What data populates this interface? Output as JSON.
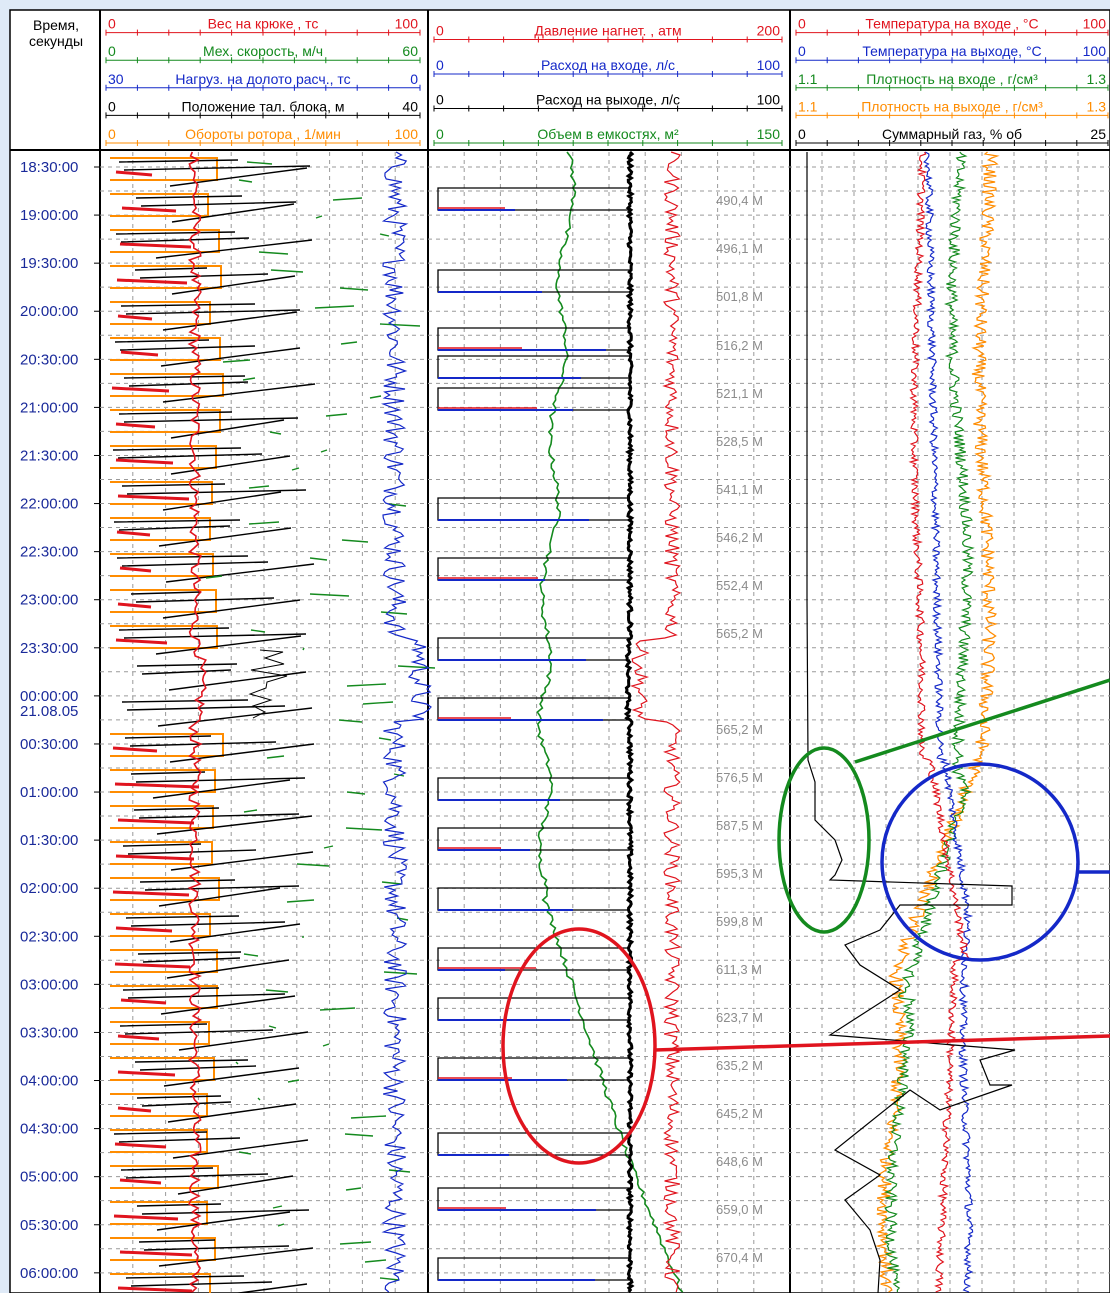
{
  "time_header": [
    "Время,",
    "секунды"
  ],
  "date_label": "21.08.05",
  "times": [
    "18:30:00",
    "19:00:00",
    "19:30:00",
    "20:00:00",
    "20:30:00",
    "21:00:00",
    "21:30:00",
    "22:00:00",
    "22:30:00",
    "23:00:00",
    "23:30:00",
    "00:00:00",
    "00:30:00",
    "01:00:00",
    "01:30:00",
    "02:00:00",
    "02:30:00",
    "03:00:00",
    "03:30:00",
    "04:00:00",
    "04:30:00",
    "05:00:00",
    "05:30:00",
    "06:00:00"
  ],
  "depths": [
    "490,4 М",
    "496,1 М",
    "501,8 М",
    "516,2 М",
    "521,1 М",
    "528,5 М",
    "541,1 М",
    "546,2 М",
    "552,4 М",
    "565,2 М",
    "565,2 М",
    "576,5 М",
    "587,5 М",
    "595,3 М",
    "599,8 М",
    "611,3 М",
    "623,7 М",
    "635,2 М",
    "645,2 М",
    "648,6 М",
    "659,0 М",
    "670,4 М"
  ],
  "colors": {
    "red": "#e0141e",
    "green": "#148a1e",
    "blue": "#1428c8",
    "black": "#000000",
    "orange": "#ff8c00",
    "time": "#1a2a9a",
    "date": "#22bb22",
    "grid": "#9a9a9a"
  },
  "chart_data": [
    {
      "type": "line",
      "panel": "drilling mechanics",
      "curves": [
        {
          "name": "Вес на крюке , тс",
          "color": "#e0141e",
          "range": [
            0,
            100
          ]
        },
        {
          "name": "Мех. скорость, м/ч",
          "color": "#148a1e",
          "range": [
            0,
            60
          ]
        },
        {
          "name": "Нагруз. на долото расч., тс",
          "color": "#1428c8",
          "range": [
            30,
            0
          ]
        },
        {
          "name": "Положение тал. блока, м",
          "color": "#000000",
          "range": [
            0,
            40
          ]
        },
        {
          "name": "Обороты ротора , 1/мин",
          "color": "#ff8c00",
          "range": [
            0,
            100
          ]
        }
      ]
    },
    {
      "type": "line",
      "panel": "hydraulics",
      "curves": [
        {
          "name": "Давление нагнет. , атм",
          "color": "#e0141e",
          "range": [
            0,
            200
          ]
        },
        {
          "name": "Расход на входе, л/с",
          "color": "#1428c8",
          "range": [
            0,
            100
          ]
        },
        {
          "name": "Расход на выходе, л/с",
          "color": "#000000",
          "range": [
            0,
            100
          ]
        },
        {
          "name": "Объем в емкостях, м²",
          "color": "#148a1e",
          "range": [
            0,
            150
          ]
        }
      ]
    },
    {
      "type": "line",
      "panel": "mud parameters",
      "curves": [
        {
          "name": "Температура на входе , °С",
          "color": "#e0141e",
          "range": [
            0,
            100
          ]
        },
        {
          "name": "Температура на выходе, °С",
          "color": "#1428c8",
          "range": [
            0,
            100
          ]
        },
        {
          "name": "Плотность на входе , г/см³",
          "color": "#148a1e",
          "range": [
            1.1,
            1.3
          ]
        },
        {
          "name": "Плотность на выходе , г/см³",
          "color": "#ff8c00",
          "range": [
            1.1,
            1.3
          ]
        },
        {
          "name": "Суммарный газ, % об",
          "color": "#000000",
          "range": [
            0,
            25
          ]
        }
      ]
    }
  ]
}
